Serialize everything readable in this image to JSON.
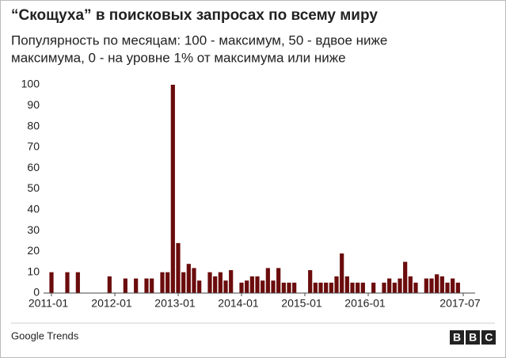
{
  "chart_data": {
    "type": "bar",
    "title": "“Скощуха” в поисковых запросах по всему миру",
    "subtitle": [
      "Популярность по месяцам: 100 - максимум, 50 - вдвое ниже",
      "максимума, 0 - на уровне 1% от максимума или ниже"
    ],
    "categories": [
      "2011-01",
      null,
      null,
      null,
      null,
      null,
      null,
      null,
      null,
      null,
      null,
      null,
      "2012-01",
      null,
      null,
      null,
      null,
      null,
      null,
      null,
      null,
      null,
      null,
      null,
      "2013-01",
      null,
      null,
      null,
      null,
      null,
      null,
      null,
      null,
      null,
      null,
      null,
      "2014-01",
      null,
      null,
      null,
      null,
      null,
      null,
      null,
      null,
      null,
      null,
      null,
      "2015-01",
      null,
      null,
      null,
      null,
      null,
      null,
      null,
      null,
      null,
      null,
      null,
      "2016-01",
      null,
      null,
      null,
      null,
      null,
      null,
      null,
      null,
      null,
      null,
      null,
      null,
      null,
      null,
      null,
      null,
      null,
      "2017-07"
    ],
    "values": [
      10,
      0,
      0,
      10,
      0,
      10,
      0,
      0,
      0,
      0,
      0,
      8,
      0,
      0,
      7,
      0,
      7,
      0,
      7,
      7,
      0,
      10,
      10,
      100,
      24,
      10,
      14,
      12,
      6,
      0,
      10,
      8,
      10,
      6,
      11,
      0,
      5,
      6,
      8,
      8,
      6,
      12,
      6,
      12,
      5,
      5,
      5,
      0,
      0,
      11,
      5,
      5,
      5,
      5,
      8,
      19,
      8,
      5,
      5,
      5,
      0,
      5,
      0,
      5,
      7,
      5,
      7,
      15,
      8,
      5,
      0,
      7,
      7,
      9,
      8,
      5,
      7,
      5,
      0
    ],
    "color": "#6b0c0c",
    "ylim": [
      0,
      100
    ],
    "yticks": [
      0,
      10,
      20,
      30,
      40,
      50,
      60,
      70,
      80,
      90,
      100
    ],
    "source": "Google Trends",
    "logo": "BBC"
  }
}
